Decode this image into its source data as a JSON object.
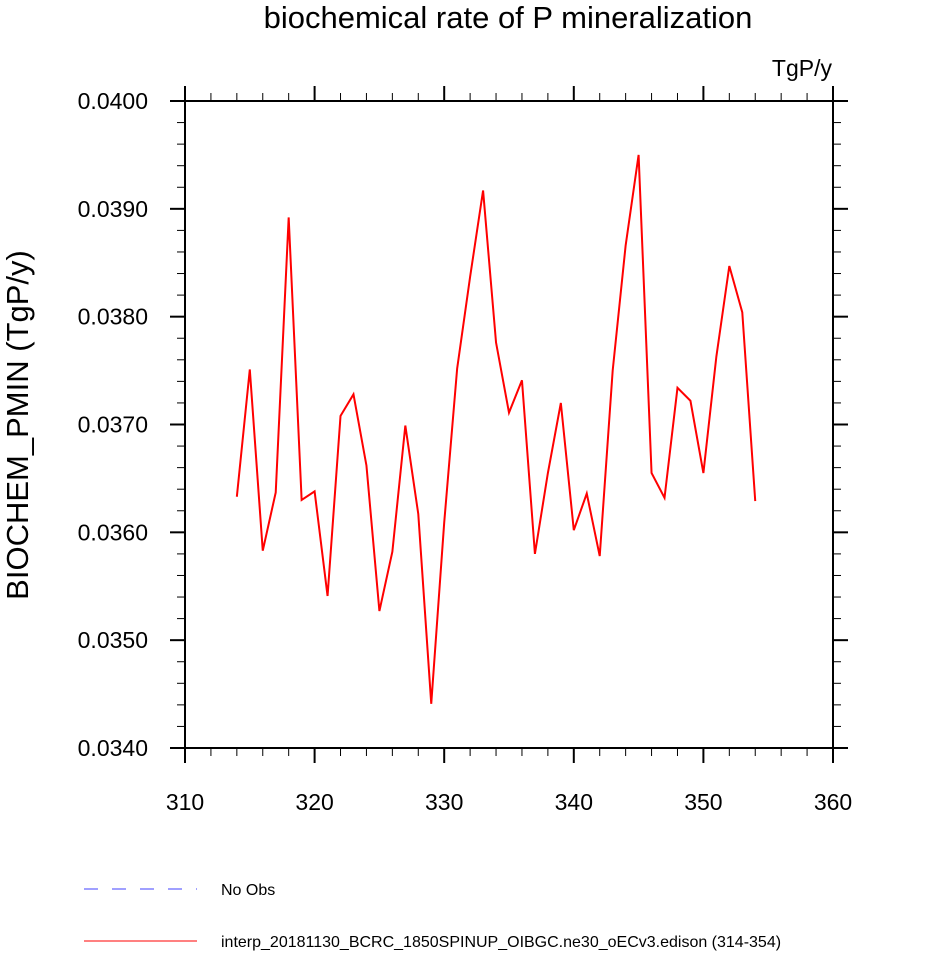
{
  "chart_data": {
    "type": "line",
    "title": "biochemical rate of P mineralization",
    "units_label": "TgP/y",
    "xlabel": "",
    "ylabel": "BIOCHEM_PMIN  (TgP/y)",
    "xlim": [
      310,
      360
    ],
    "ylim": [
      0.034,
      0.04
    ],
    "x_ticks": [
      "310",
      "320",
      "330",
      "340",
      "350",
      "360"
    ],
    "y_ticks": [
      "0.0340",
      "0.0350",
      "0.0360",
      "0.0370",
      "0.0380",
      "0.0390",
      "0.0400"
    ],
    "grid": false,
    "legend_position": "bottom",
    "series": [
      {
        "name": "interp_20181130_BCRC_1850SPINUP_OIBGC.ne30_oECv3.edison (314-354)",
        "color": "#ff0000",
        "line_style": "solid",
        "x": [
          314,
          315,
          316,
          317,
          318,
          319,
          320,
          321,
          322,
          323,
          324,
          325,
          326,
          327,
          328,
          329,
          330,
          331,
          332,
          333,
          334,
          335,
          336,
          337,
          338,
          339,
          340,
          341,
          342,
          343,
          344,
          345,
          346,
          347,
          348,
          349,
          350,
          351,
          352,
          353,
          354
        ],
        "values": [
          0.03633,
          0.03751,
          0.03583,
          0.03637,
          0.03892,
          0.0363,
          0.03638,
          0.03541,
          0.03708,
          0.03728,
          0.03662,
          0.03527,
          0.03582,
          0.03699,
          0.03617,
          0.03441,
          0.03609,
          0.03752,
          0.03837,
          0.03917,
          0.03776,
          0.03711,
          0.03741,
          0.0358,
          0.03655,
          0.0372,
          0.03602,
          0.03636,
          0.03578,
          0.0375,
          0.03866,
          0.0395,
          0.03655,
          0.03632,
          0.03734,
          0.03722,
          0.03655,
          0.03763,
          0.03847,
          0.03804,
          0.03629
        ]
      },
      {
        "name": "No Obs",
        "color": "#4040ff",
        "line_style": "dashed",
        "x": [],
        "values": []
      }
    ]
  }
}
